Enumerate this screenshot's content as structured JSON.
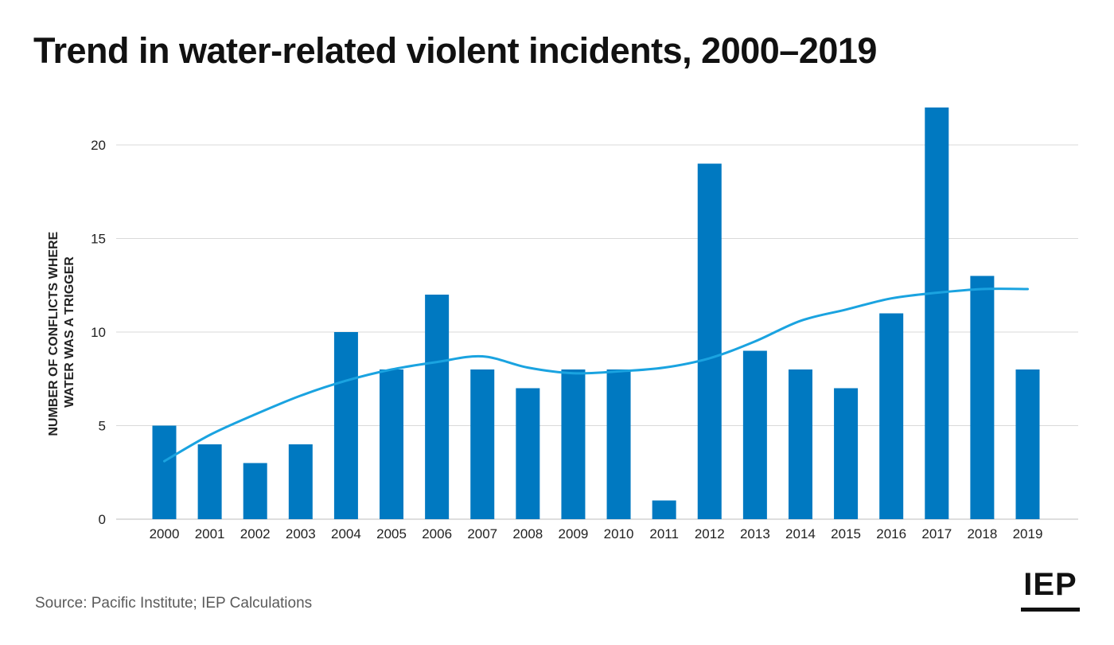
{
  "title": "Trend in water-related violent incidents, 2000–2019",
  "source": "Source: Pacific Institute; IEP Calculations",
  "logo": "IEP",
  "colors": {
    "bar": "#0079c1",
    "trend": "#1aa3e0",
    "grid": "#d9d9d9"
  },
  "chart_data": {
    "type": "bar",
    "title": "Trend in water-related violent incidents, 2000–2019",
    "ylabel_lines": [
      "NUMBER OF CONFLICTS WHERE",
      "WATER WAS A TRIGGER"
    ],
    "xlabel": "",
    "categories": [
      "2000",
      "2001",
      "2002",
      "2003",
      "2004",
      "2005",
      "2006",
      "2007",
      "2008",
      "2009",
      "2010",
      "2011",
      "2012",
      "2013",
      "2014",
      "2015",
      "2016",
      "2017",
      "2018",
      "2019"
    ],
    "values": [
      5,
      4,
      3,
      4,
      10,
      8,
      12,
      8,
      7,
      8,
      8,
      1,
      19,
      9,
      8,
      7,
      11,
      22,
      13,
      8
    ],
    "trend": [
      3.1,
      4.5,
      5.6,
      6.6,
      7.4,
      8.0,
      8.4,
      8.7,
      8.1,
      7.8,
      7.9,
      8.1,
      8.6,
      9.5,
      10.6,
      11.2,
      11.8,
      12.1,
      12.3,
      12.3
    ],
    "yticks": [
      0,
      5,
      10,
      15,
      20
    ],
    "ylim": [
      0,
      22
    ],
    "grid": true,
    "legend": "none"
  }
}
